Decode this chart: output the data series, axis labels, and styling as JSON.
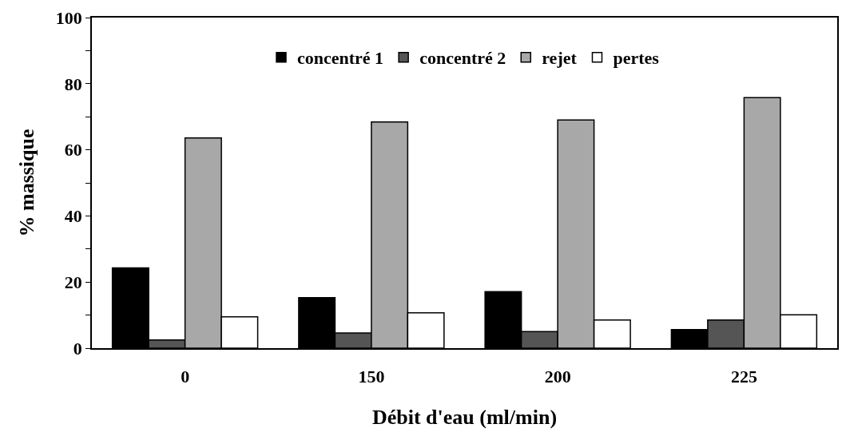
{
  "chart_data": {
    "type": "bar",
    "xlabel": "Débit d'eau (ml/min)",
    "ylabel": "% massique",
    "categories": [
      "0",
      "150",
      "200",
      "225"
    ],
    "series": [
      {
        "name": "concentré 1",
        "color": "#000000",
        "values": [
          24.3,
          15.3,
          17.1,
          5.6
        ]
      },
      {
        "name": "concentré 2",
        "color": "#555555",
        "values": [
          2.5,
          4.6,
          5.0,
          8.5
        ]
      },
      {
        "name": "rejet",
        "color": "#a8a8a8",
        "values": [
          63.6,
          68.4,
          69.0,
          75.8
        ]
      },
      {
        "name": "pertes",
        "color": "#ffffff",
        "values": [
          9.5,
          10.7,
          8.5,
          10.1
        ]
      }
    ],
    "ylim": [
      0,
      100
    ],
    "yticks": [
      0,
      {
        "value": 10,
        "label": null
      },
      20,
      {
        "value": 30,
        "label": null
      },
      40,
      {
        "value": 50,
        "label": null
      },
      60,
      {
        "value": 70,
        "label": null
      },
      80,
      {
        "value": 90,
        "label": null
      },
      100
    ],
    "grid": false,
    "legend": "top"
  }
}
